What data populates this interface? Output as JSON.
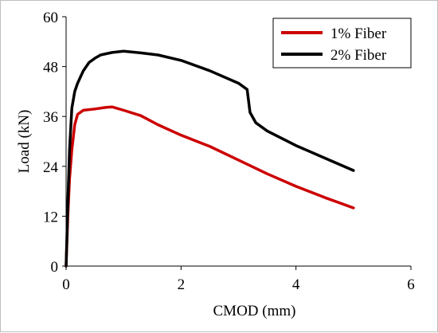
{
  "chart_data": {
    "type": "line",
    "title": "",
    "xlabel": "CMOD (mm)",
    "ylabel": "Load (kN)",
    "xlim": [
      0,
      6
    ],
    "ylim": [
      0,
      60
    ],
    "xticks": [
      "0",
      "2",
      "4",
      "6"
    ],
    "yticks": [
      "0",
      "12",
      "24",
      "36",
      "48",
      "60"
    ],
    "grid": false,
    "legend_position": "top-right",
    "series": [
      {
        "name": "1% Fiber",
        "color": "#cc0000",
        "x": [
          0,
          0.03,
          0.06,
          0.1,
          0.15,
          0.2,
          0.3,
          0.5,
          0.7,
          0.8,
          1.0,
          1.3,
          1.6,
          2.0,
          2.5,
          3.0,
          3.5,
          4.0,
          4.5,
          5.0
        ],
        "y": [
          0,
          12,
          21,
          28,
          34,
          36.5,
          37.5,
          37.8,
          38.2,
          38.3,
          37.5,
          36.2,
          34.0,
          31.5,
          28.8,
          25.5,
          22.2,
          19.2,
          16.5,
          14.0
        ]
      },
      {
        "name": "2% Fiber",
        "color": "#000000",
        "x": [
          0,
          0.03,
          0.06,
          0.1,
          0.15,
          0.2,
          0.3,
          0.4,
          0.5,
          0.6,
          0.8,
          1.0,
          1.3,
          1.6,
          2.0,
          2.5,
          3.0,
          3.15,
          3.2,
          3.3,
          3.5,
          4.0,
          4.5,
          5.0
        ],
        "y": [
          0,
          15,
          28,
          38,
          42,
          44,
          47,
          49,
          50,
          50.8,
          51.4,
          51.7,
          51.3,
          50.8,
          49.5,
          47.0,
          44.0,
          42.5,
          37,
          34.5,
          32.5,
          29.0,
          26.0,
          23.0
        ]
      }
    ]
  }
}
